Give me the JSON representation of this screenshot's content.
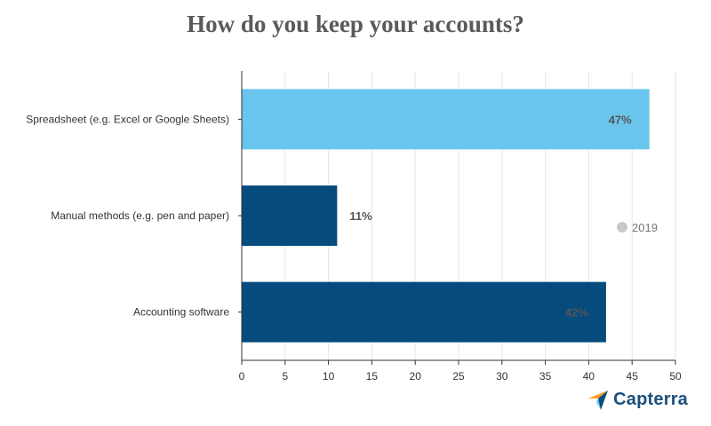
{
  "chart_data": {
    "type": "bar",
    "orientation": "horizontal",
    "title": "How do you keep your accounts?",
    "categories": [
      "Spreadsheet (e.g. Excel or Google Sheets)",
      "Manual methods (e.g. pen and paper)",
      "Accounting software"
    ],
    "series": [
      {
        "name": "2019",
        "values": [
          47,
          11,
          42
        ]
      }
    ],
    "data_labels": [
      "47%",
      "11%",
      "42%"
    ],
    "bar_colors": [
      "#6ac5ee",
      "#064b7e",
      "#064b7e"
    ],
    "xlim": [
      0,
      50
    ],
    "xticks": [
      0,
      5,
      10,
      15,
      20,
      25,
      30,
      35,
      40,
      45,
      50
    ],
    "grid": true,
    "legend_position": "right",
    "legend_marker_color": "#c8c8c8"
  },
  "brand": {
    "name": "Capterra"
  }
}
